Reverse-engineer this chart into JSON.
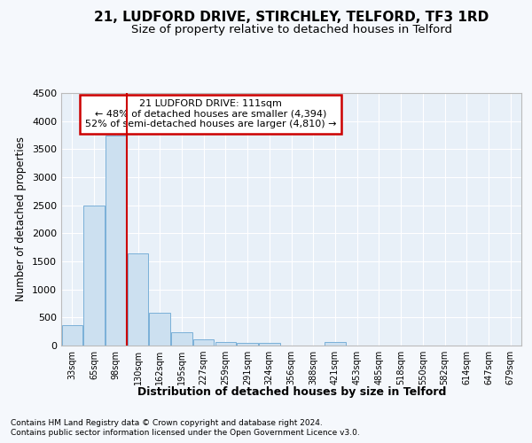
{
  "title": "21, LUDFORD DRIVE, STIRCHLEY, TELFORD, TF3 1RD",
  "subtitle": "Size of property relative to detached houses in Telford",
  "xlabel": "Distribution of detached houses by size in Telford",
  "ylabel": "Number of detached properties",
  "categories": [
    "33sqm",
    "65sqm",
    "98sqm",
    "130sqm",
    "162sqm",
    "195sqm",
    "227sqm",
    "259sqm",
    "291sqm",
    "324sqm",
    "356sqm",
    "388sqm",
    "421sqm",
    "453sqm",
    "485sqm",
    "518sqm",
    "550sqm",
    "582sqm",
    "614sqm",
    "647sqm",
    "679sqm"
  ],
  "values": [
    370,
    2500,
    3750,
    1650,
    590,
    240,
    105,
    65,
    40,
    40,
    0,
    0,
    65,
    0,
    0,
    0,
    0,
    0,
    0,
    0,
    0
  ],
  "bar_color": "#cce0f0",
  "bar_edge_color": "#7ab0d8",
  "annotation_title": "21 LUDFORD DRIVE: 111sqm",
  "annotation_line1": "← 48% of detached houses are smaller (4,394)",
  "annotation_line2": "52% of semi-detached houses are larger (4,810) →",
  "ylim": [
    0,
    4500
  ],
  "yticks": [
    0,
    500,
    1000,
    1500,
    2000,
    2500,
    3000,
    3500,
    4000,
    4500
  ],
  "footer_line1": "Contains HM Land Registry data © Crown copyright and database right 2024.",
  "footer_line2": "Contains public sector information licensed under the Open Government Licence v3.0.",
  "bg_color": "#f5f8fc",
  "plot_bg_color": "#e8f0f8",
  "grid_color": "#ffffff",
  "title_fontsize": 11,
  "subtitle_fontsize": 9.5,
  "annotation_box_color": "#ffffff",
  "annotation_box_edge": "#cc0000",
  "red_line_color": "#cc0000",
  "red_line_x": 2.5
}
